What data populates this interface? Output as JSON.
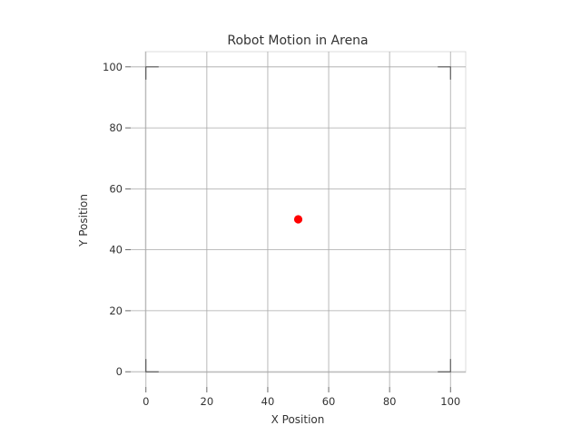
{
  "chart_data": {
    "type": "scatter",
    "title": "Robot Motion in Arena",
    "xlabel": "X Position",
    "ylabel": "Y Position",
    "xlim": [
      -5,
      105
    ],
    "ylim": [
      -5,
      105
    ],
    "xticks": [
      0,
      20,
      40,
      60,
      80,
      100
    ],
    "yticks": [
      0,
      20,
      40,
      60,
      80,
      100
    ],
    "grid": true,
    "arena": [
      0,
      100
    ],
    "series": [
      {
        "points": [
          {
            "x": 50,
            "y": 50
          }
        ],
        "color": "#ff0000"
      }
    ]
  }
}
